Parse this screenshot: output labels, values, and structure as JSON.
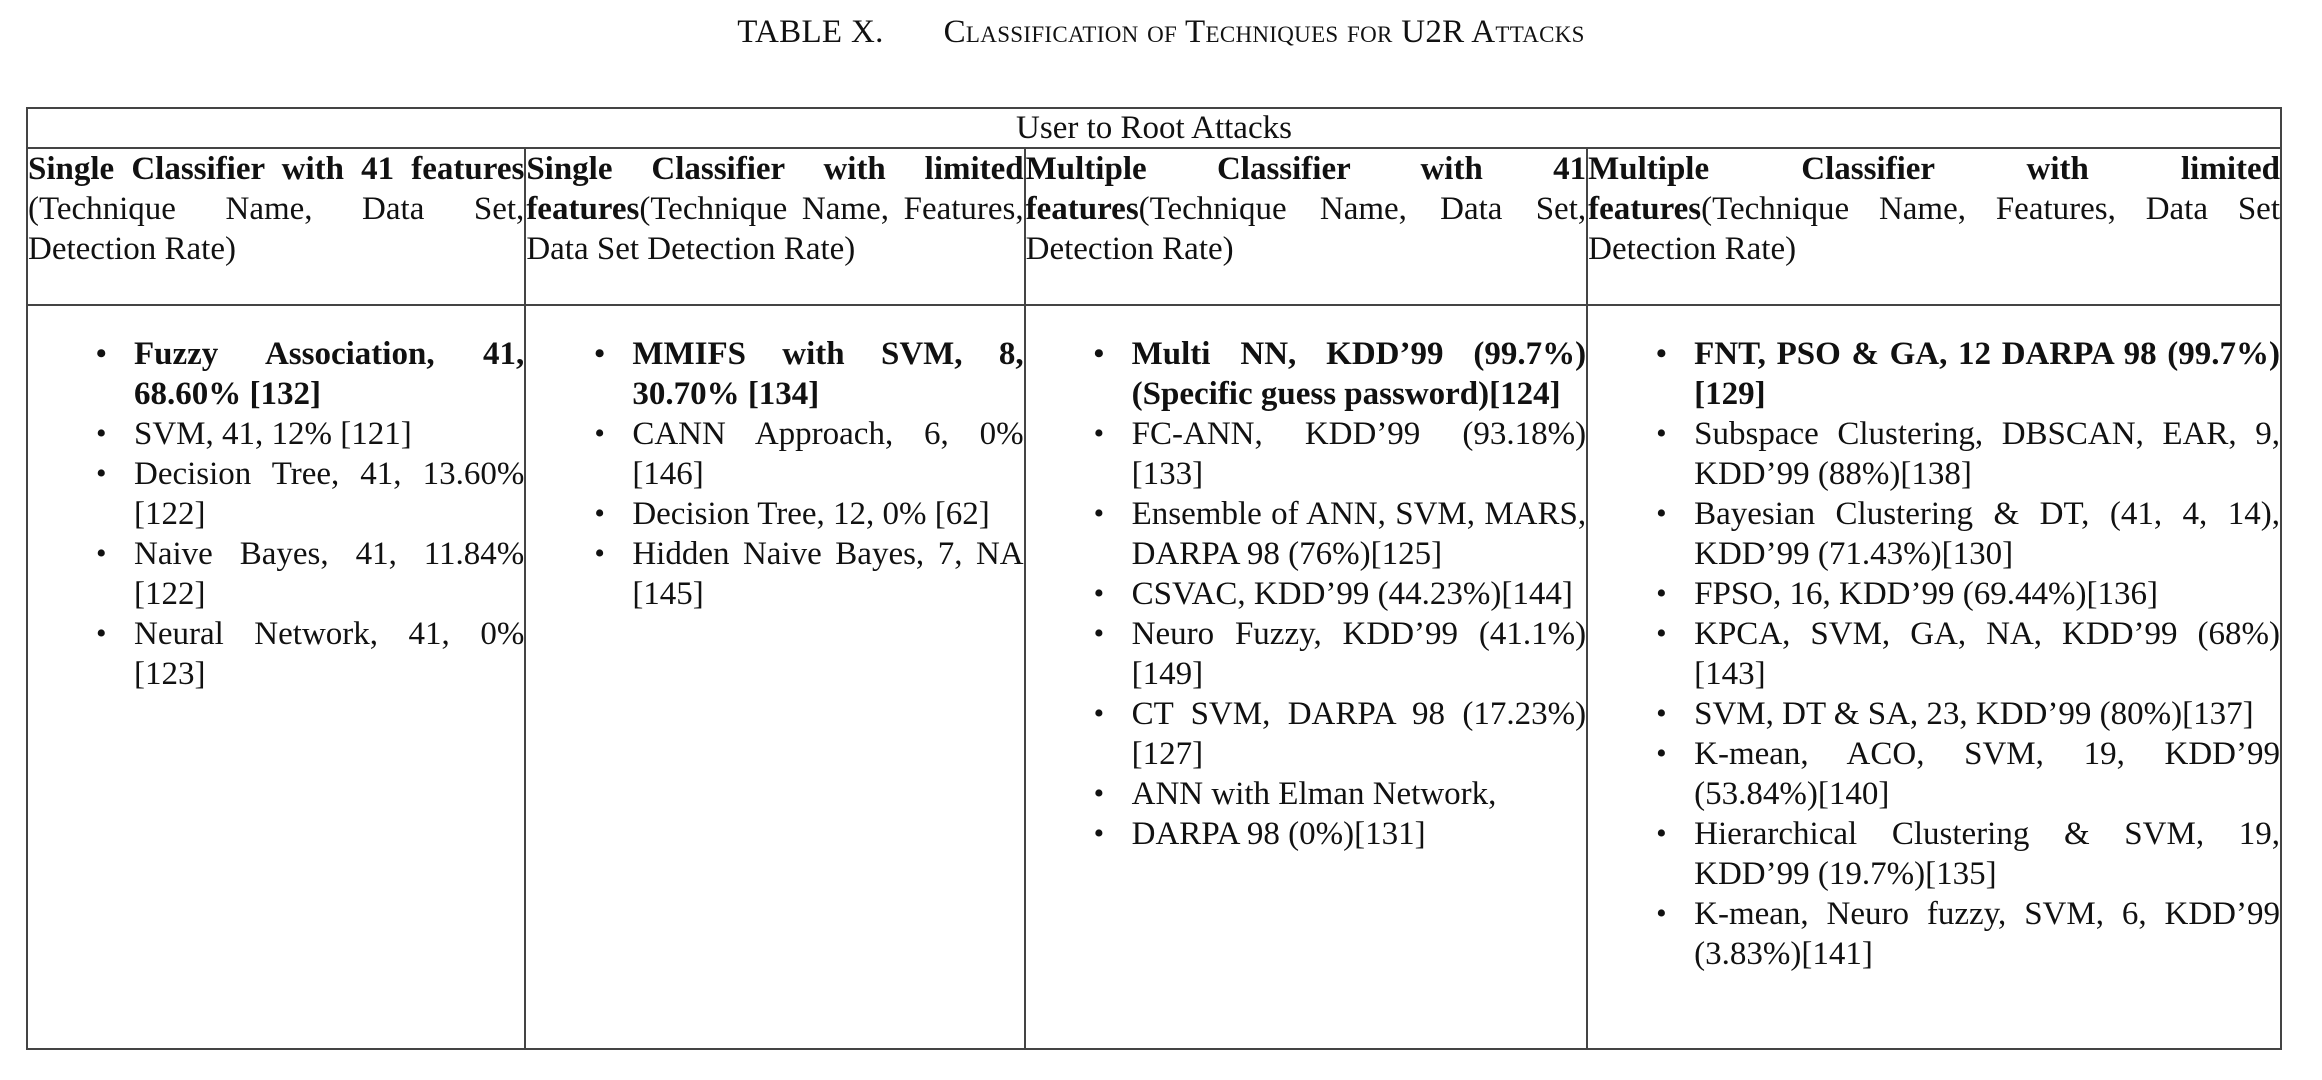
{
  "caption": {
    "number": "TABLE X.",
    "title": "Classification of Techniques for U2R Attacks"
  },
  "table": {
    "title": "User to Root Attacks",
    "columns": [
      {
        "head_bold": "Single Classifier with 41 features",
        "head_rest": " (Technique Name, Data Set, Detection Rate)",
        "items": [
          {
            "text": "Fuzzy Association, 41, 68.60% [132]",
            "bold": true
          },
          {
            "text": "SVM, 41, 12% [121]",
            "bold": false
          },
          {
            "text": "Decision Tree, 41, 13.60% [122]",
            "bold": false
          },
          {
            "text": "Naive Bayes, 41, 11.84% [122]",
            "bold": false
          },
          {
            "text": "Neural Network, 41, 0% [123]",
            "bold": false
          }
        ]
      },
      {
        "head_bold": "Single Classifier with limited features",
        "head_rest": "(Technique Name, Features, Data Set Detection Rate)",
        "items": [
          {
            "text": "MMIFS with SVM, 8, 30.70% [134]",
            "bold": true
          },
          {
            "text": "CANN Approach, 6, 0% [146]",
            "bold": false
          },
          {
            "text": "Decision Tree, 12, 0% [62]",
            "bold": false
          },
          {
            "text": "Hidden Naive Bayes, 7, NA [145]",
            "bold": false
          }
        ]
      },
      {
        "head_bold": "Multiple Classifier with 41 features",
        "head_rest": "(Technique Name, Data Set, Detection Rate)",
        "items": [
          {
            "text": "Multi NN, KDD’99 (99.7%) (Specific guess password)[124]",
            "bold": true
          },
          {
            "text": "FC-ANN, KDD’99 (93.18%)[133]",
            "bold": false
          },
          {
            "text": "Ensemble of ANN, SVM, MARS, DARPA 98 (76%)[125]",
            "bold": false
          },
          {
            "text": "CSVAC, KDD’99 (44.23%)[144]",
            "bold": false
          },
          {
            "text": "Neuro Fuzzy, KDD’99 (41.1%)[149]",
            "bold": false
          },
          {
            "text": "CT SVM, DARPA 98 (17.23%)[127]",
            "bold": false
          },
          {
            "text": "ANN with Elman Network,",
            "bold": false
          },
          {
            "text": "DARPA 98 (0%)[131]",
            "bold": false
          }
        ]
      },
      {
        "head_bold": "Multiple Classifier with limited features",
        "head_rest": "(Technique Name, Features, Data Set Detection Rate)",
        "items": [
          {
            "text": "FNT, PSO & GA, 12 DARPA 98 (99.7%)[129]",
            "bold": true
          },
          {
            "text": "Subspace Clustering, DBSCAN, EAR, 9, KDD’99 (88%)[138]",
            "bold": false
          },
          {
            "text": "Bayesian Clustering & DT, (41, 4, 14), KDD’99 (71.43%)[130]",
            "bold": false
          },
          {
            "text": "FPSO, 16, KDD’99 (69.44%)[136]",
            "bold": false
          },
          {
            "text": "KPCA, SVM, GA, NA, KDD’99 (68%)[143]",
            "bold": false
          },
          {
            "text": "SVM, DT & SA, 23, KDD’99 (80%)[137]",
            "bold": false
          },
          {
            "text": "K-mean, ACO, SVM, 19, KDD’99 (53.84%)[140]",
            "bold": false
          },
          {
            "text": "Hierarchical Clustering & SVM, 19, KDD’99 (19.7%)[135]",
            "bold": false
          },
          {
            "text": "K-mean, Neuro fuzzy, SVM, 6, KDD’99 (3.83%)[141]",
            "bold": false
          }
        ]
      }
    ]
  }
}
